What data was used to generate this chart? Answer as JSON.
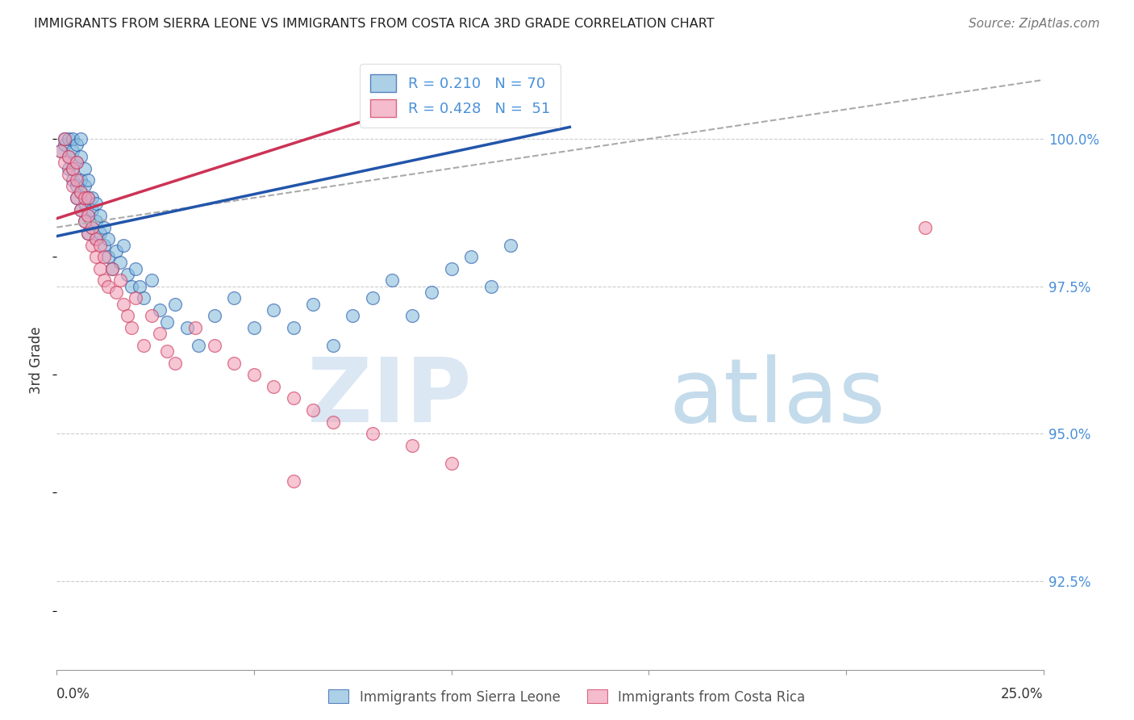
{
  "title": "IMMIGRANTS FROM SIERRA LEONE VS IMMIGRANTS FROM COSTA RICA 3RD GRADE CORRELATION CHART",
  "source": "Source: ZipAtlas.com",
  "ylabel": "3rd Grade",
  "y_ticks": [
    92.5,
    95.0,
    97.5,
    100.0
  ],
  "y_tick_labels": [
    "92.5%",
    "95.0%",
    "97.5%",
    "100.0%"
  ],
  "y_tick_color": "#4a90d9",
  "xmin": 0.0,
  "xmax": 0.25,
  "ymin": 91.0,
  "ymax": 101.5,
  "color_sierra": "#89bedd",
  "color_costa": "#f0a0b8",
  "trend_sierra": "#2255aa",
  "trend_costa": "#cc3355",
  "sl_x": [
    0.001,
    0.002,
    0.002,
    0.003,
    0.003,
    0.003,
    0.004,
    0.004,
    0.004,
    0.004,
    0.005,
    0.005,
    0.005,
    0.005,
    0.006,
    0.006,
    0.006,
    0.006,
    0.006,
    0.007,
    0.007,
    0.007,
    0.007,
    0.008,
    0.008,
    0.008,
    0.008,
    0.009,
    0.009,
    0.009,
    0.01,
    0.01,
    0.01,
    0.011,
    0.011,
    0.012,
    0.012,
    0.013,
    0.013,
    0.014,
    0.015,
    0.016,
    0.017,
    0.018,
    0.019,
    0.02,
    0.021,
    0.022,
    0.024,
    0.026,
    0.028,
    0.03,
    0.033,
    0.036,
    0.04,
    0.045,
    0.05,
    0.055,
    0.06,
    0.065,
    0.07,
    0.075,
    0.08,
    0.085,
    0.09,
    0.095,
    0.1,
    0.105,
    0.11,
    0.115
  ],
  "sl_y": [
    99.8,
    99.9,
    100.0,
    99.5,
    99.7,
    100.0,
    99.3,
    99.5,
    99.8,
    100.0,
    99.0,
    99.2,
    99.6,
    99.9,
    98.8,
    99.1,
    99.3,
    99.7,
    100.0,
    98.6,
    98.9,
    99.2,
    99.5,
    98.4,
    98.7,
    99.0,
    99.3,
    98.5,
    98.8,
    99.0,
    98.3,
    98.6,
    98.9,
    98.4,
    98.7,
    98.2,
    98.5,
    98.0,
    98.3,
    97.8,
    98.1,
    97.9,
    98.2,
    97.7,
    97.5,
    97.8,
    97.5,
    97.3,
    97.6,
    97.1,
    96.9,
    97.2,
    96.8,
    96.5,
    97.0,
    97.3,
    96.8,
    97.1,
    96.8,
    97.2,
    96.5,
    97.0,
    97.3,
    97.6,
    97.0,
    97.4,
    97.8,
    98.0,
    97.5,
    98.2
  ],
  "cr_x": [
    0.001,
    0.002,
    0.002,
    0.003,
    0.003,
    0.004,
    0.004,
    0.005,
    0.005,
    0.005,
    0.006,
    0.006,
    0.007,
    0.007,
    0.008,
    0.008,
    0.008,
    0.009,
    0.009,
    0.01,
    0.01,
    0.011,
    0.011,
    0.012,
    0.012,
    0.013,
    0.014,
    0.015,
    0.016,
    0.017,
    0.018,
    0.019,
    0.02,
    0.022,
    0.024,
    0.026,
    0.028,
    0.03,
    0.035,
    0.04,
    0.045,
    0.05,
    0.055,
    0.06,
    0.065,
    0.07,
    0.08,
    0.09,
    0.1,
    0.22,
    0.06
  ],
  "cr_y": [
    99.8,
    99.6,
    100.0,
    99.4,
    99.7,
    99.2,
    99.5,
    99.0,
    99.3,
    99.6,
    98.8,
    99.1,
    98.6,
    99.0,
    98.4,
    98.7,
    99.0,
    98.2,
    98.5,
    98.0,
    98.3,
    97.8,
    98.2,
    97.6,
    98.0,
    97.5,
    97.8,
    97.4,
    97.6,
    97.2,
    97.0,
    96.8,
    97.3,
    96.5,
    97.0,
    96.7,
    96.4,
    96.2,
    96.8,
    96.5,
    96.2,
    96.0,
    95.8,
    95.6,
    95.4,
    95.2,
    95.0,
    94.8,
    94.5,
    98.5,
    94.2
  ],
  "sl_trend_x0": 0.0,
  "sl_trend_y0": 98.35,
  "sl_trend_x1": 0.12,
  "sl_trend_y1": 100.2,
  "cr_trend_x0": 0.0,
  "cr_trend_y0": 98.65,
  "cr_trend_x1": 0.12,
  "cr_trend_y1": 101.2,
  "dash_trend_x0": 0.0,
  "dash_trend_y0": 98.5,
  "dash_trend_x1": 0.25,
  "dash_trend_y1": 101.0
}
